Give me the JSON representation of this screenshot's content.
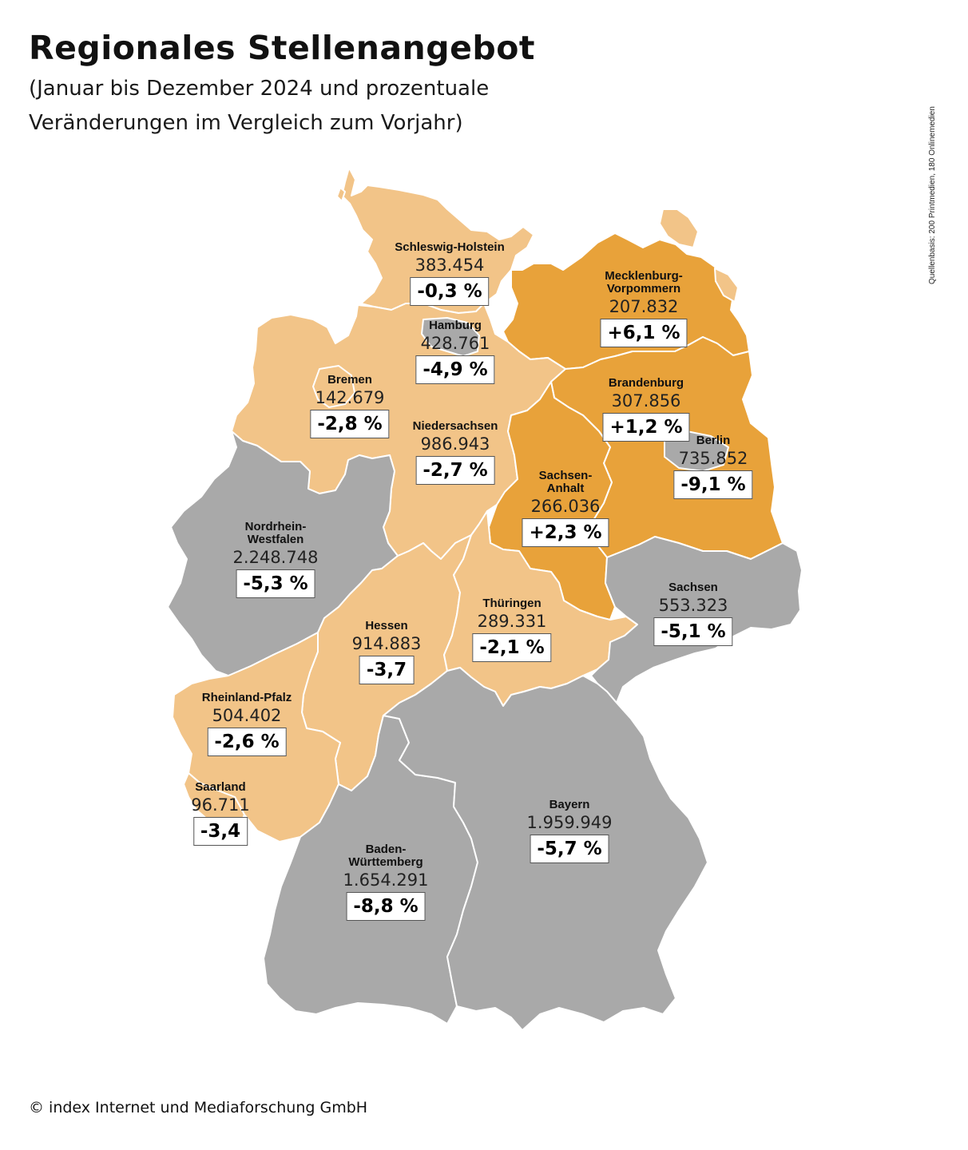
{
  "header": {
    "title": "Regionales Stellenangebot",
    "subtitle": "(Januar bis Dezember 2024 und prozentuale Veränderungen im Vergleich zum Vorjahr)"
  },
  "source_note": "Quellenbasis: 200 Printmedien, 180 Onlinemedien",
  "footer": {
    "copyright": "© index Internet und Mediaforschung GmbH"
  },
  "colors": {
    "positive_change": "#e8a23a",
    "small_negative_change": "#f2c488",
    "large_negative_change": "#a9a9a9"
  },
  "regions": [
    {
      "name": "Schleswig-Holstein",
      "value": "383.454",
      "change": "-0,3 %"
    },
    {
      "name": "Hamburg",
      "value": "428.761",
      "change": "-4,9 %"
    },
    {
      "name": "Mecklenburg-\nVorpommern",
      "value": "207.832",
      "change": "+6,1 %"
    },
    {
      "name": "Bremen",
      "value": "142.679",
      "change": "-2,8 %"
    },
    {
      "name": "Niedersachsen",
      "value": "986.943",
      "change": "-2,7 %"
    },
    {
      "name": "Brandenburg",
      "value": "307.856",
      "change": "+1,2 %"
    },
    {
      "name": "Berlin",
      "value": "735.852",
      "change": "-9,1 %"
    },
    {
      "name": "Sachsen-\nAnhalt",
      "value": "266.036",
      "change": "+2,3 %"
    },
    {
      "name": "Nordrhein-\nWestfalen",
      "value": "2.248.748",
      "change": "-5,3 %"
    },
    {
      "name": "Sachsen",
      "value": "553.323",
      "change": "-5,1 %"
    },
    {
      "name": "Thüringen",
      "value": "289.331",
      "change": "-2,1 %"
    },
    {
      "name": "Hessen",
      "value": "914.883",
      "change": "-3,7"
    },
    {
      "name": "Rheinland-Pfalz",
      "value": "504.402",
      "change": "-2,6 %"
    },
    {
      "name": "Saarland",
      "value": "96.711",
      "change": "-3,4"
    },
    {
      "name": "Bayern",
      "value": "1.959.949",
      "change": "-5,7 %"
    },
    {
      "name": "Baden-\nWürttemberg",
      "value": "1.654.291",
      "change": "-8,8 %"
    }
  ]
}
